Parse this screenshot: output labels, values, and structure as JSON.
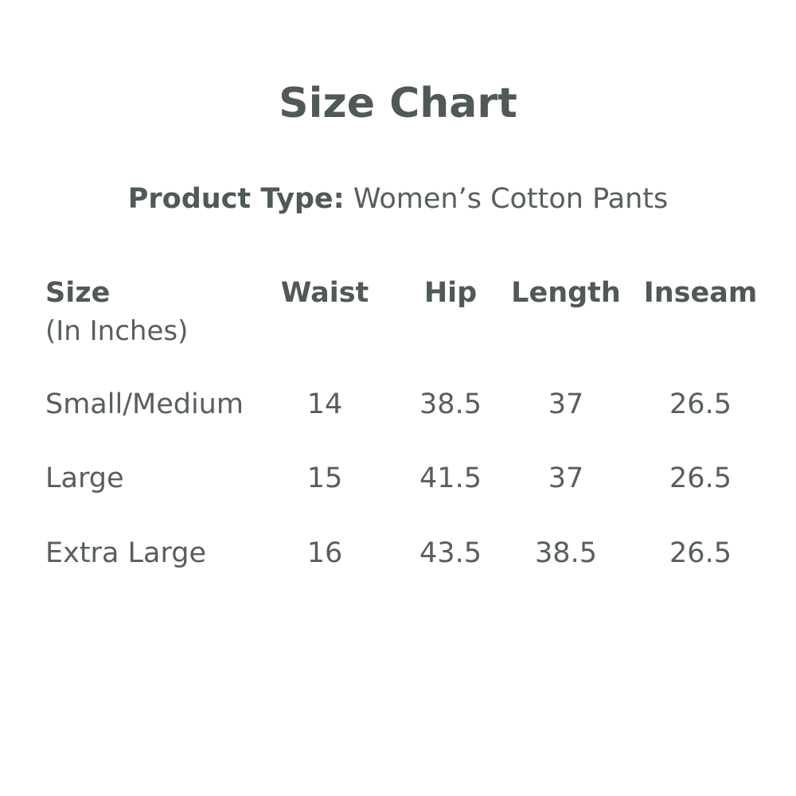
{
  "title": "Size Chart",
  "product": {
    "label": "Product Type:",
    "value": "Women’s Cotton Pants"
  },
  "table": {
    "headers": [
      "Size",
      "Waist",
      "Hip",
      "Length",
      "Inseam"
    ],
    "size_unit": "(In Inches)",
    "rows": [
      [
        "Small/Medium",
        "14",
        "38.5",
        "37",
        "26.5"
      ],
      [
        "Large",
        "15",
        "41.5",
        "37",
        "26.5"
      ],
      [
        "Extra Large",
        "16",
        "43.5",
        "38.5",
        "26.5"
      ]
    ]
  }
}
